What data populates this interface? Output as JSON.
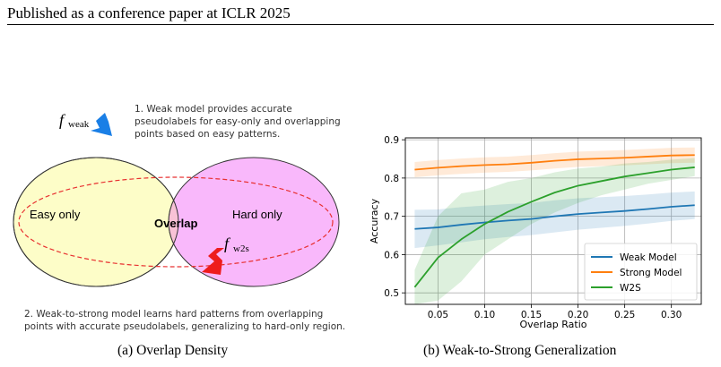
{
  "header": "Published as a conference paper at ICLR 2025",
  "figure_a": {
    "note1": [
      "1. Weak model provides accurate",
      "pseudolabels for easy-only and overlapping",
      "points based on easy patterns."
    ],
    "note2": [
      "2. Weak-to-strong model learns hard patterns from overlapping",
      "points with accurate pseudolabels, generalizing to hard-only region."
    ],
    "easy_label": "Easy only",
    "hard_label": "Hard only",
    "overlap_label": "Overlap",
    "f_symbol": "f",
    "weak_sub": "weak",
    "w2s_sub": "w2s",
    "caption": "(a)  Overlap Density",
    "colors": {
      "easy_fill": "#fdfdc8",
      "hard_fill": "#f9b8fb",
      "overlap_fill": "#f8c2d6",
      "weak_arrow": "#1a7fe6",
      "w2s_arrow": "#ee1c1c",
      "dashed_ellipse": "#e83030"
    }
  },
  "figure_b": {
    "caption": "(b)  Weak-to-Strong Generalization"
  },
  "chart_data": {
    "type": "line",
    "xlabel": "Overlap Ratio",
    "ylabel": "Accuracy",
    "xlim": [
      0.015,
      0.332
    ],
    "ylim": [
      0.47,
      0.905
    ],
    "xticks": [
      0.05,
      0.1,
      0.15,
      0.2,
      0.25,
      0.3
    ],
    "xtick_labels": [
      "0.05",
      "0.10",
      "0.15",
      "0.20",
      "0.25",
      "0.30"
    ],
    "yticks": [
      0.5,
      0.6,
      0.7,
      0.8,
      0.9
    ],
    "ytick_labels": [
      "0.5",
      "0.6",
      "0.7",
      "0.8",
      "0.9"
    ],
    "grid": true,
    "legend_position": "lower-right",
    "x": [
      0.025,
      0.05,
      0.075,
      0.1,
      0.125,
      0.15,
      0.175,
      0.2,
      0.225,
      0.25,
      0.275,
      0.3,
      0.325
    ],
    "series": [
      {
        "name": "Weak Model",
        "color": "#1f77b4",
        "values": [
          0.667,
          0.671,
          0.678,
          0.684,
          0.689,
          0.693,
          0.7,
          0.706,
          0.71,
          0.714,
          0.719,
          0.725,
          0.729
        ],
        "lower": [
          0.617,
          0.624,
          0.632,
          0.64,
          0.646,
          0.651,
          0.658,
          0.665,
          0.67,
          0.675,
          0.681,
          0.688,
          0.693
        ],
        "upper": [
          0.717,
          0.718,
          0.724,
          0.728,
          0.732,
          0.735,
          0.742,
          0.747,
          0.75,
          0.753,
          0.757,
          0.762,
          0.765
        ]
      },
      {
        "name": "Strong Model",
        "color": "#ff7f0e",
        "values": [
          0.822,
          0.827,
          0.831,
          0.834,
          0.836,
          0.84,
          0.845,
          0.849,
          0.851,
          0.853,
          0.856,
          0.859,
          0.86
        ],
        "lower": [
          0.802,
          0.807,
          0.811,
          0.814,
          0.816,
          0.82,
          0.825,
          0.829,
          0.831,
          0.833,
          0.836,
          0.839,
          0.84
        ],
        "upper": [
          0.842,
          0.847,
          0.851,
          0.854,
          0.856,
          0.86,
          0.865,
          0.869,
          0.871,
          0.873,
          0.876,
          0.879,
          0.88
        ]
      },
      {
        "name": "W2S",
        "color": "#2ca02c",
        "values": [
          0.515,
          0.592,
          0.64,
          0.68,
          0.712,
          0.738,
          0.762,
          0.78,
          0.792,
          0.804,
          0.813,
          0.822,
          0.828
        ],
        "lower": [
          0.47,
          0.48,
          0.53,
          0.6,
          0.64,
          0.68,
          0.71,
          0.735,
          0.755,
          0.77,
          0.785,
          0.795,
          0.805
        ],
        "upper": [
          0.56,
          0.7,
          0.76,
          0.77,
          0.79,
          0.8,
          0.815,
          0.825,
          0.83,
          0.838,
          0.842,
          0.848,
          0.852
        ]
      }
    ]
  }
}
